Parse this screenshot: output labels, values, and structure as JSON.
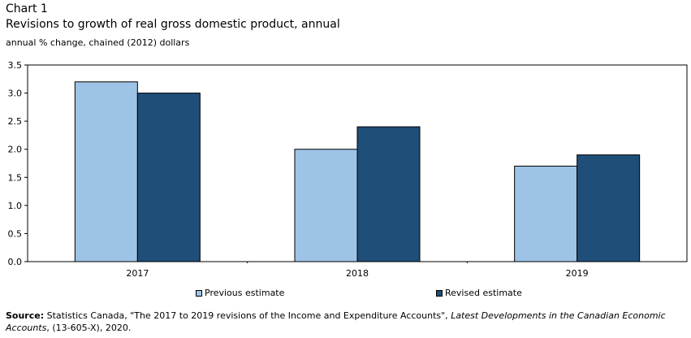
{
  "header": {
    "chart_label": "Chart 1",
    "title": "Revisions to growth of real gross domestic product, annual",
    "unit": "annual % change, chained (2012) dollars"
  },
  "chart_data": {
    "type": "bar",
    "categories": [
      "2017",
      "2018",
      "2019"
    ],
    "series": [
      {
        "name": "Previous estimate",
        "values": [
          3.2,
          2.0,
          1.7
        ],
        "color": "#9dc3e6"
      },
      {
        "name": "Revised estimate",
        "values": [
          3.0,
          2.4,
          1.9
        ],
        "color": "#1f4e79"
      }
    ],
    "ylim": [
      0,
      3.5
    ],
    "yticks": [
      "0.0",
      "0.5",
      "1.0",
      "1.5",
      "2.0",
      "2.5",
      "3.0",
      "3.5"
    ],
    "grid": false,
    "legend_position": "bottom"
  },
  "legend": {
    "items": [
      {
        "label": "Previous estimate",
        "color": "#9dc3e6"
      },
      {
        "label": "Revised estimate",
        "color": "#1f4e79"
      }
    ]
  },
  "footer": {
    "source_label": "Source:",
    "source_text_1": " Statistics Canada, \"The 2017 to 2019 revisions of the Income and Expenditure Accounts\", ",
    "source_italic": "Latest Developments in the Canadian Economic Accounts",
    "source_text_2": ", (13-605-X), 2020."
  }
}
